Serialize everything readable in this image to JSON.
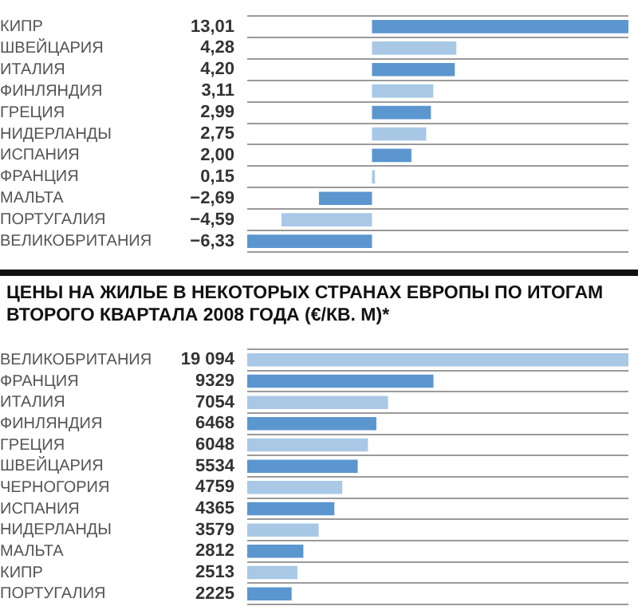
{
  "chart_data": [
    {
      "type": "bar",
      "orientation": "horizontal",
      "grid": "y",
      "categories": [
        "КИПР",
        "ШВЕЙЦАРИЯ",
        "ИТАЛИЯ",
        "ФИНЛЯНДИЯ",
        "ГРЕЦИЯ",
        "НИДЕРЛАНДЫ",
        "ИСПАНИЯ",
        "ФРАНЦИЯ",
        "МАЛЬТА",
        "ПОРТУГАЛИЯ",
        "ВЕЛИКОБРИТАНИЯ"
      ],
      "values": [
        13.01,
        4.28,
        4.2,
        3.11,
        2.99,
        2.75,
        2.0,
        0.15,
        -2.69,
        -4.59,
        -6.33
      ],
      "value_labels": [
        "13,01",
        "4,28",
        "4,20",
        "3,11",
        "2,99",
        "2,75",
        "2,00",
        "0,15",
        "−2,69",
        "−4,59",
        "−6,33"
      ],
      "colors": [
        "#5b96cf",
        "#a8c8e6",
        "#5b96cf",
        "#a8c8e6",
        "#5b96cf",
        "#a8c8e6",
        "#5b96cf",
        "#a8c8e6",
        "#5b96cf",
        "#a8c8e6",
        "#5b96cf"
      ]
    },
    {
      "type": "bar",
      "orientation": "horizontal",
      "grid": "y",
      "title": "ЦЕНЫ НА ЖИЛЬЕ В НЕКОТОРЫХ СТРАНАХ ЕВРОПЫ ПО ИТОГАМ ВТОРОГО КВАРТАЛА 2008 ГОДА (€/КВ. М)*",
      "categories": [
        "ВЕЛИКОБРИТАНИЯ",
        "ФРАНЦИЯ",
        "ИТАЛИЯ",
        "ФИНЛЯНДИЯ",
        "ГРЕЦИЯ",
        "ШВЕЙЦАРИЯ",
        "ЧЕРНОГОРИЯ",
        "ИСПАНИЯ",
        "НИДЕРЛАНДЫ",
        "МАЛЬТА",
        "КИПР",
        "ПОРТУГАЛИЯ"
      ],
      "values": [
        19094,
        9329,
        7054,
        6468,
        6048,
        5534,
        4759,
        4365,
        3579,
        2812,
        2513,
        2225
      ],
      "value_labels": [
        "19 094",
        "9329",
        "7054",
        "6468",
        "6048",
        "5534",
        "4759",
        "4365",
        "3579",
        "2812",
        "2513",
        "2225"
      ],
      "colors": [
        "#a8c8e6",
        "#5b96cf",
        "#a8c8e6",
        "#5b96cf",
        "#a8c8e6",
        "#5b96cf",
        "#a8c8e6",
        "#5b96cf",
        "#a8c8e6",
        "#5b96cf",
        "#a8c8e6",
        "#5b96cf"
      ]
    }
  ]
}
